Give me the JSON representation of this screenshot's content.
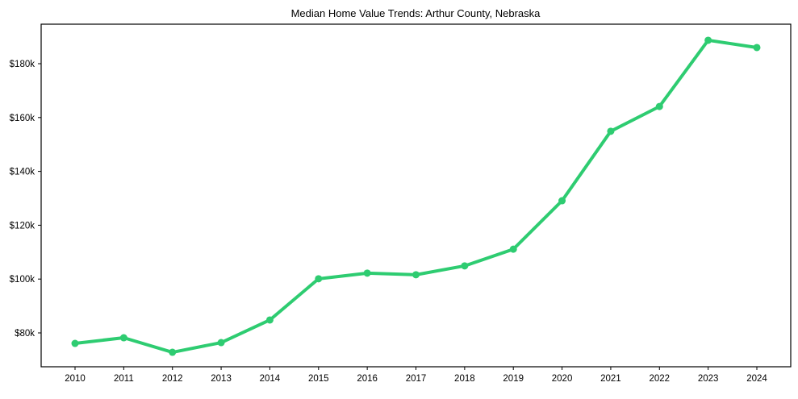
{
  "chart_data": {
    "type": "line",
    "title": "Median Home Value Trends: Arthur County, Nebraska",
    "xlabel": "",
    "ylabel": "",
    "categories": [
      "2010",
      "2011",
      "2012",
      "2013",
      "2014",
      "2015",
      "2016",
      "2017",
      "2018",
      "2019",
      "2020",
      "2021",
      "2022",
      "2023",
      "2024"
    ],
    "series": [
      {
        "name": "Median Home Value",
        "color": "#2ecc71",
        "marker": "circle",
        "values": [
          76100,
          78200,
          72800,
          76400,
          84800,
          100100,
          102200,
          101600,
          104900,
          111100,
          129100,
          154900,
          164100,
          188700,
          186000
        ]
      }
    ],
    "y_ticks": [
      80000,
      100000,
      120000,
      140000,
      160000,
      180000
    ],
    "y_tick_labels": [
      "$80k",
      "$100k",
      "$120k",
      "$140k",
      "$160k",
      "$180k"
    ],
    "ylim": [
      68200,
      195100
    ],
    "grid": false,
    "legend": null
  }
}
